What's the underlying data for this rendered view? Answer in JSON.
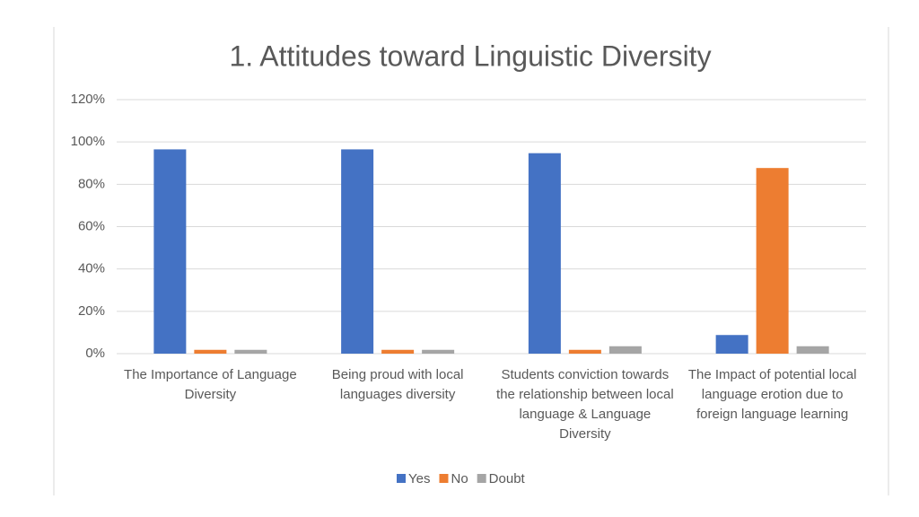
{
  "chart_data": {
    "type": "bar",
    "title": "1. Attitudes toward Linguistic Diversity",
    "categories": [
      "The Importance of Language Diversity",
      "Being proud with local languages diversity",
      "Students conviction towards the relationship between local language & Language Diversity",
      "The Impact of potential local language erotion due to foreign language learning"
    ],
    "series": [
      {
        "name": "Yes",
        "color": "#4472c4",
        "values": [
          96.5,
          96.5,
          94.7,
          8.8
        ]
      },
      {
        "name": "No",
        "color": "#ed7d31",
        "values": [
          1.8,
          1.8,
          1.8,
          87.7
        ]
      },
      {
        "name": "Doubt",
        "color": "#a5a5a5",
        "values": [
          1.8,
          1.8,
          3.5,
          3.5
        ]
      }
    ],
    "ylim": [
      0,
      120
    ],
    "yticks": [
      {
        "value": 0,
        "label": "0%"
      },
      {
        "value": 20,
        "label": "20%"
      },
      {
        "value": 40,
        "label": "40%"
      },
      {
        "value": 60,
        "label": "60%"
      },
      {
        "value": 80,
        "label": "80%"
      },
      {
        "value": 100,
        "label": "100%"
      },
      {
        "value": 120,
        "label": "120%"
      }
    ],
    "grid": true,
    "legend": "bottom"
  }
}
